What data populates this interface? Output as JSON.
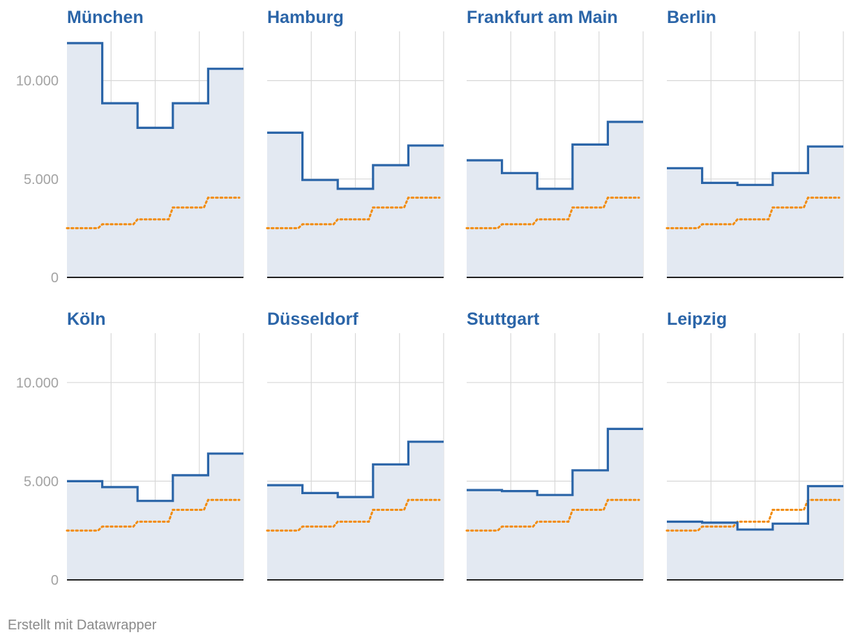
{
  "chart_data": {
    "type": "line",
    "subtype": "step-small-multiples",
    "y_tick_labels": [
      "0",
      "5.000",
      "10.000"
    ],
    "ylim": [
      0,
      12500
    ],
    "x_segments": 5,
    "x_gridlines": 4,
    "colors": {
      "city_line": "#2b65a8",
      "city_fill": "#e3e9f2",
      "reference_line": "#f28c0f",
      "title": "#2b65a8",
      "grid": "#d8d8d8",
      "baseline": "#222222",
      "tick_label": "#a3a3a3"
    },
    "panels": [
      {
        "title": "München",
        "series": [
          {
            "name": "city",
            "values": [
              11900,
              8850,
              7600,
              8850,
              10600
            ]
          },
          {
            "name": "reference",
            "values": [
              2500,
              2700,
              2950,
              3550,
              4050
            ]
          }
        ]
      },
      {
        "title": "Hamburg",
        "series": [
          {
            "name": "city",
            "values": [
              7350,
              4950,
              4500,
              5700,
              6700
            ]
          },
          {
            "name": "reference",
            "values": [
              2500,
              2700,
              2950,
              3550,
              4050
            ]
          }
        ]
      },
      {
        "title": "Frankfurt am Main",
        "series": [
          {
            "name": "city",
            "values": [
              5950,
              5300,
              4500,
              6750,
              7900
            ]
          },
          {
            "name": "reference",
            "values": [
              2500,
              2700,
              2950,
              3550,
              4050
            ]
          }
        ]
      },
      {
        "title": "Berlin",
        "series": [
          {
            "name": "city",
            "values": [
              5550,
              4800,
              4700,
              5300,
              6650
            ]
          },
          {
            "name": "reference",
            "values": [
              2500,
              2700,
              2950,
              3550,
              4050
            ]
          }
        ]
      },
      {
        "title": "Köln",
        "series": [
          {
            "name": "city",
            "values": [
              5000,
              4700,
              4000,
              5300,
              6400
            ]
          },
          {
            "name": "reference",
            "values": [
              2500,
              2700,
              2950,
              3550,
              4050
            ]
          }
        ]
      },
      {
        "title": "Düsseldorf",
        "series": [
          {
            "name": "city",
            "values": [
              4800,
              4400,
              4200,
              5850,
              7000
            ]
          },
          {
            "name": "reference",
            "values": [
              2500,
              2700,
              2950,
              3550,
              4050
            ]
          }
        ]
      },
      {
        "title": "Stuttgart",
        "series": [
          {
            "name": "city",
            "values": [
              4550,
              4500,
              4300,
              5550,
              7650
            ]
          },
          {
            "name": "reference",
            "values": [
              2500,
              2700,
              2950,
              3550,
              4050
            ]
          }
        ]
      },
      {
        "title": "Leipzig",
        "series": [
          {
            "name": "city",
            "values": [
              2950,
              2900,
              2550,
              2850,
              4750
            ]
          },
          {
            "name": "reference",
            "values": [
              2500,
              2700,
              2950,
              3550,
              4050
            ]
          }
        ]
      }
    ]
  },
  "footer": {
    "credit": "Erstellt mit Datawrapper"
  }
}
